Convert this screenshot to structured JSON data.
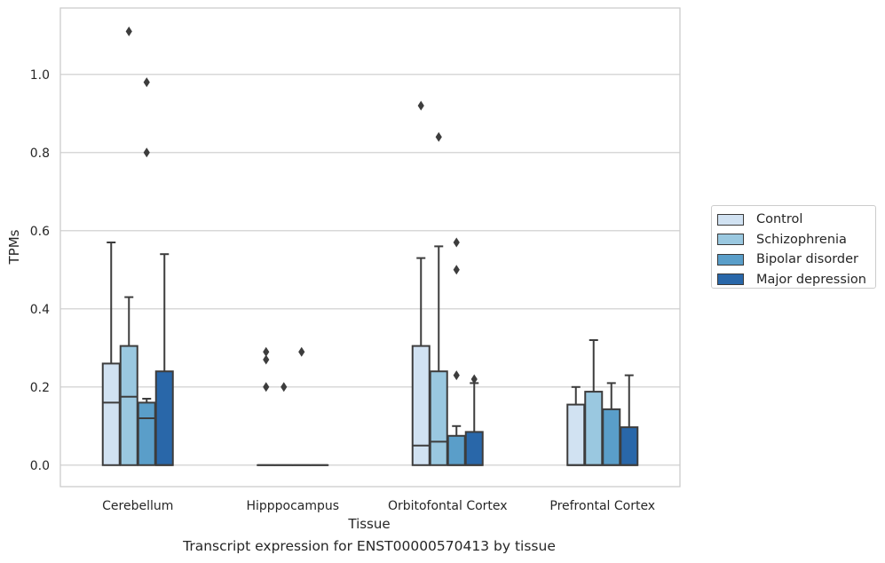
{
  "chart_data": {
    "type": "box",
    "title": "",
    "caption": "Transcript expression for ENST00000570413 by tissue",
    "xlabel": "Tissue",
    "ylabel": "TPMs",
    "ylim": [
      -0.055,
      1.17
    ],
    "yticks": [
      "0.0",
      "0.2",
      "0.4",
      "0.6",
      "0.8",
      "1.0"
    ],
    "grid": true,
    "legend_position": "right",
    "categories": [
      "Cerebellum",
      "Hipppocampus",
      "Orbitofontal Cortex",
      "Prefrontal Cortex"
    ],
    "series": [
      {
        "name": "Control",
        "color": "#d1e2f2",
        "boxes": [
          {
            "whislo": 0.0,
            "q1": 0.0,
            "med": 0.16,
            "q3": 0.26,
            "whishi": 0.57,
            "fliers": []
          },
          {
            "whislo": 0.0,
            "q1": 0.0,
            "med": 0.0,
            "q3": 0.0,
            "whishi": 0.0,
            "fliers": [
              0.29,
              0.27,
              0.2
            ]
          },
          {
            "whislo": 0.0,
            "q1": 0.0,
            "med": 0.05,
            "q3": 0.305,
            "whishi": 0.53,
            "fliers": [
              0.92
            ]
          },
          {
            "whislo": 0.0,
            "q1": 0.0,
            "med": 0.0,
            "q3": 0.155,
            "whishi": 0.2,
            "fliers": []
          }
        ]
      },
      {
        "name": "Schizophrenia",
        "color": "#9ac8e0",
        "boxes": [
          {
            "whislo": 0.0,
            "q1": 0.0,
            "med": 0.175,
            "q3": 0.305,
            "whishi": 0.43,
            "fliers": [
              1.11
            ]
          },
          {
            "whislo": 0.0,
            "q1": 0.0,
            "med": 0.0,
            "q3": 0.0,
            "whishi": 0.0,
            "fliers": [
              0.2
            ]
          },
          {
            "whislo": 0.0,
            "q1": 0.0,
            "med": 0.06,
            "q3": 0.24,
            "whishi": 0.56,
            "fliers": [
              0.84
            ]
          },
          {
            "whislo": 0.0,
            "q1": 0.0,
            "med": 0.0,
            "q3": 0.188,
            "whishi": 0.32,
            "fliers": []
          }
        ]
      },
      {
        "name": "Bipolar disorder",
        "color": "#5a9ec9",
        "boxes": [
          {
            "whislo": 0.0,
            "q1": 0.0,
            "med": 0.12,
            "q3": 0.16,
            "whishi": 0.17,
            "fliers": [
              0.98,
              0.8
            ]
          },
          {
            "whislo": 0.0,
            "q1": 0.0,
            "med": 0.0,
            "q3": 0.0,
            "whishi": 0.0,
            "fliers": [
              0.29
            ]
          },
          {
            "whislo": 0.0,
            "q1": 0.0,
            "med": 0.0,
            "q3": 0.075,
            "whishi": 0.1,
            "fliers": [
              0.57,
              0.5,
              0.23
            ]
          },
          {
            "whislo": 0.0,
            "q1": 0.0,
            "med": 0.0,
            "q3": 0.143,
            "whishi": 0.21,
            "fliers": []
          }
        ]
      },
      {
        "name": "Major depression",
        "color": "#2967a9",
        "boxes": [
          {
            "whislo": 0.0,
            "q1": 0.0,
            "med": 0.0,
            "q3": 0.24,
            "whishi": 0.54,
            "fliers": []
          },
          {
            "whislo": 0.0,
            "q1": 0.0,
            "med": 0.0,
            "q3": 0.0,
            "whishi": 0.0,
            "fliers": []
          },
          {
            "whislo": 0.0,
            "q1": 0.0,
            "med": 0.0,
            "q3": 0.085,
            "whishi": 0.21,
            "fliers": [
              0.22
            ]
          },
          {
            "whislo": 0.0,
            "q1": 0.0,
            "med": 0.0,
            "q3": 0.097,
            "whishi": 0.23,
            "fliers": []
          }
        ]
      }
    ]
  }
}
